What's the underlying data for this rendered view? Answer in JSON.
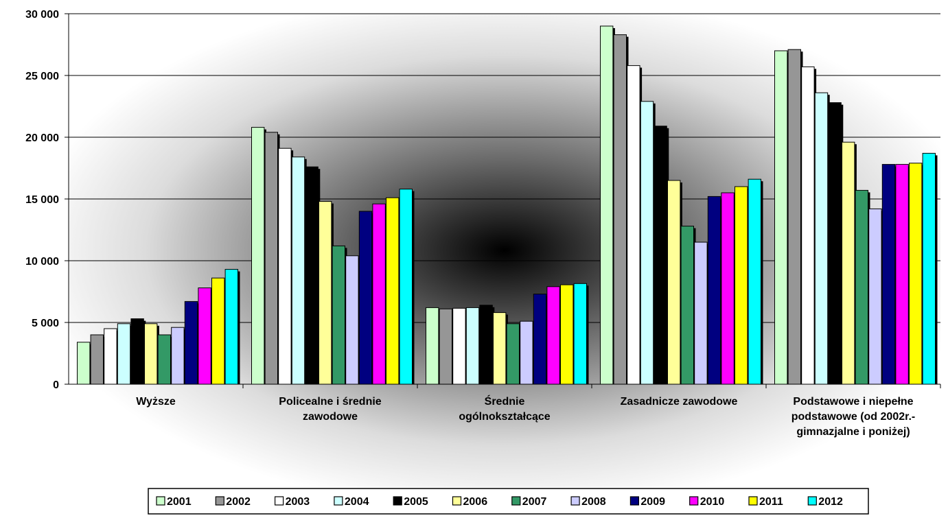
{
  "chart_data": {
    "type": "bar",
    "title": "",
    "xlabel": "",
    "ylabel": "",
    "ylim": [
      0,
      30000
    ],
    "yticks": [
      0,
      5000,
      10000,
      15000,
      20000,
      25000,
      30000
    ],
    "ytick_labels": [
      "0",
      "5 000",
      "10 000",
      "15 000",
      "20 000",
      "25 000",
      "30 000"
    ],
    "grid": "horizontal",
    "legend_position": "bottom",
    "categories": [
      [
        "Wyższe"
      ],
      [
        "Policealne i średnie",
        "zawodowe"
      ],
      [
        "Średnie",
        "ogólnokształcące"
      ],
      [
        "Zasadnicze zawodowe"
      ],
      [
        "Podstawowe i niepełne",
        "podstawowe (od 2002r.-",
        "gimnazjalne i poniżej)"
      ]
    ],
    "series": [
      {
        "name": "2001",
        "color": "#ccffcc",
        "values": [
          3400,
          20800,
          6200,
          29000,
          27000
        ]
      },
      {
        "name": "2002",
        "color": "#969696",
        "values": [
          4000,
          20400,
          6100,
          28300,
          27100
        ]
      },
      {
        "name": "2003",
        "color": "#ffffff",
        "values": [
          4500,
          19100,
          6150,
          25800,
          25700
        ]
      },
      {
        "name": "2004",
        "color": "#ccffff",
        "values": [
          4900,
          18400,
          6200,
          22900,
          23600
        ]
      },
      {
        "name": "2005",
        "color": "#000000",
        "values": [
          5300,
          17600,
          6400,
          20900,
          22800
        ]
      },
      {
        "name": "2006",
        "color": "#ffff99",
        "values": [
          4900,
          14800,
          5800,
          16500,
          19600
        ]
      },
      {
        "name": "2007",
        "color": "#339966",
        "values": [
          4000,
          11200,
          4900,
          12800,
          15700
        ]
      },
      {
        "name": "2008",
        "color": "#ccccff",
        "values": [
          4600,
          10400,
          5100,
          11500,
          14200
        ]
      },
      {
        "name": "2009",
        "color": "#000080",
        "values": [
          6700,
          14000,
          7300,
          15200,
          17800
        ]
      },
      {
        "name": "2010",
        "color": "#ff00ff",
        "values": [
          7800,
          14600,
          7900,
          15500,
          17800
        ]
      },
      {
        "name": "2011",
        "color": "#ffff00",
        "values": [
          8600,
          15100,
          8050,
          16000,
          17900
        ]
      },
      {
        "name": "2012",
        "color": "#00ffff",
        "values": [
          9300,
          15800,
          8150,
          16600,
          18700
        ]
      }
    ]
  }
}
